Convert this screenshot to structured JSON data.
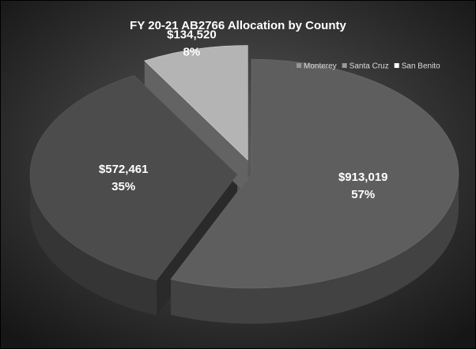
{
  "chart_data": {
    "type": "pie3d",
    "title": "FY 20-21 AB2766 Allocation by County",
    "categories": [
      "Monterey",
      "Santa Cruz",
      "San Benito"
    ],
    "values": [
      913019,
      572461,
      134520
    ],
    "value_labels": [
      "$913,019",
      "$572,461",
      "$134,520"
    ],
    "percent_labels": [
      "57%",
      "35%",
      "8%"
    ],
    "colors": [
      "#5e5e5e",
      "#4c4c4c",
      "#b4b4b4"
    ],
    "legend": "top-right"
  }
}
